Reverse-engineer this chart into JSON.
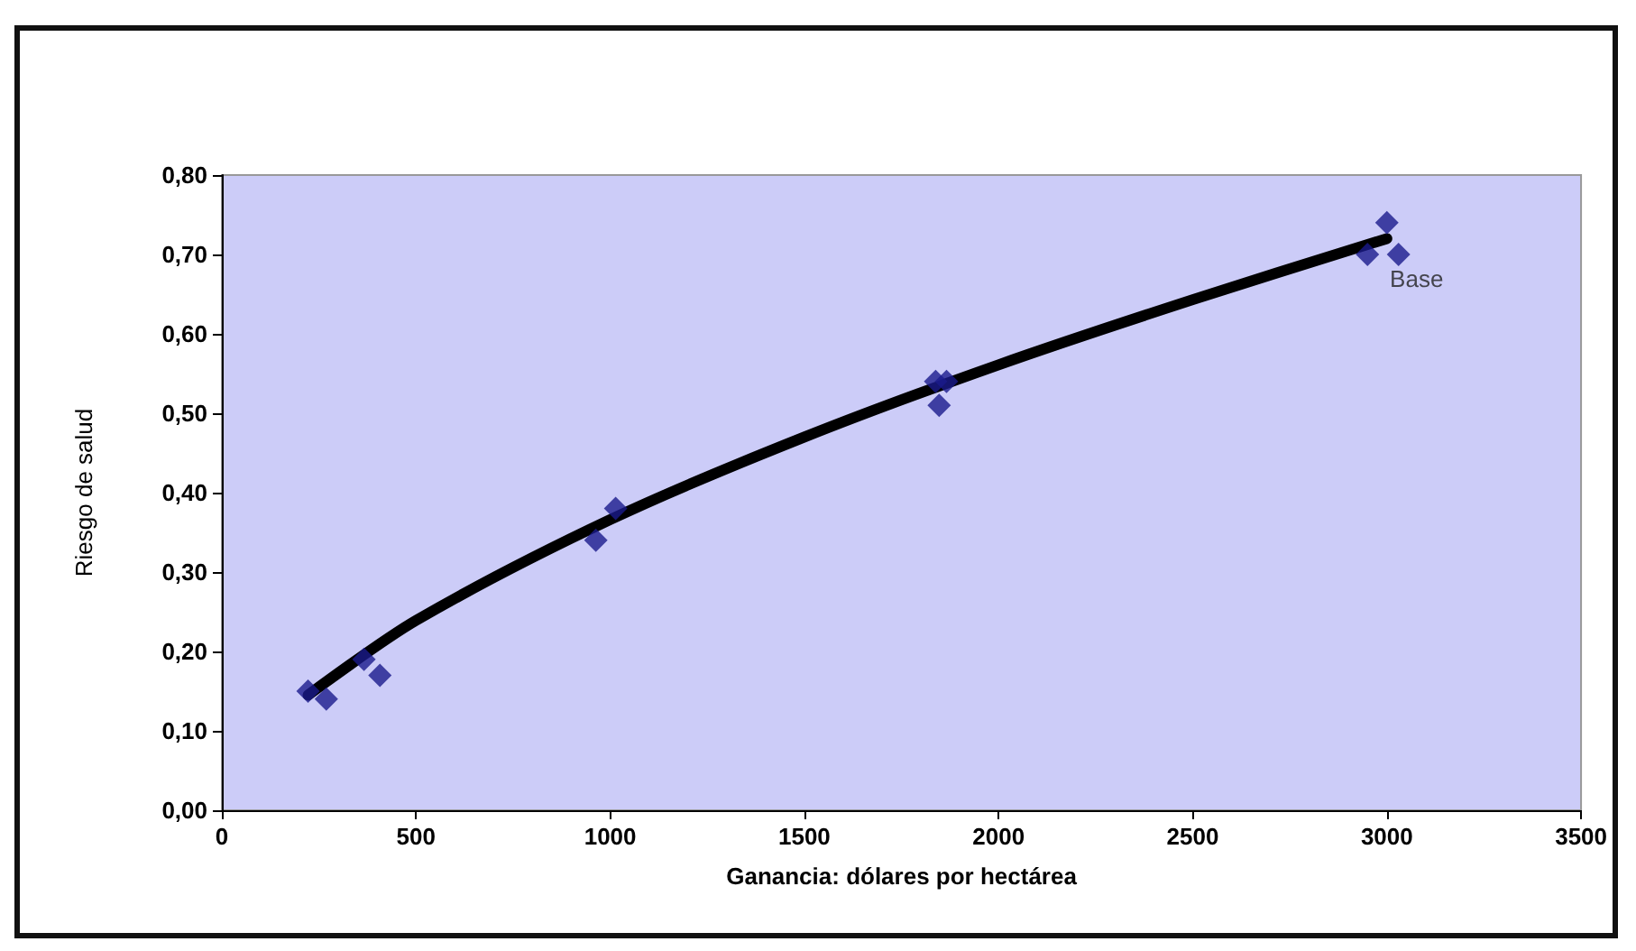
{
  "chart_data": {
    "type": "scatter",
    "xlabel": "Ganancia: dólares por hectárea",
    "ylabel": "Riesgo de salud",
    "marker": "diamond",
    "grid": false,
    "xlim": [
      0,
      3500
    ],
    "xticks": [
      0,
      500,
      1000,
      1500,
      2000,
      2500,
      3000,
      3500
    ],
    "ylim": [
      0,
      0.8
    ],
    "yticks": [
      {
        "value": 0,
        "label": "0,00"
      },
      {
        "value": 0.1,
        "label": "0,10"
      },
      {
        "value": 0.2,
        "label": "0,20"
      },
      {
        "value": 0.3,
        "label": "0,30"
      },
      {
        "value": 0.4,
        "label": "0,40"
      },
      {
        "value": 0.5,
        "label": "0,50"
      },
      {
        "value": 0.6,
        "label": "0,60"
      },
      {
        "value": 0.7,
        "label": "0,70"
      },
      {
        "value": 0.8,
        "label": "0,80"
      }
    ],
    "series": [
      {
        "color": "#1a1a8c",
        "x": [
          222,
          269,
          366,
          407,
          963,
          1014,
          1838,
          1847,
          1866,
          2950,
          3000,
          3030
        ],
        "values": [
          0.15,
          0.14,
          0.19,
          0.17,
          0.34,
          0.38,
          0.54,
          0.51,
          0.54,
          0.7,
          0.74,
          0.7
        ]
      },
      {
        "type": "line",
        "color": "#000000",
        "marker": "none",
        "x": [
          222,
          500,
          1000,
          1500,
          2000,
          2500,
          3000
        ],
        "values": [
          0.145,
          0.239,
          0.366,
          0.47,
          0.561,
          0.643,
          0.72
        ]
      }
    ],
    "annotations": [
      {
        "text": "Base",
        "x": 3030,
        "y": 0.7
      }
    ]
  }
}
